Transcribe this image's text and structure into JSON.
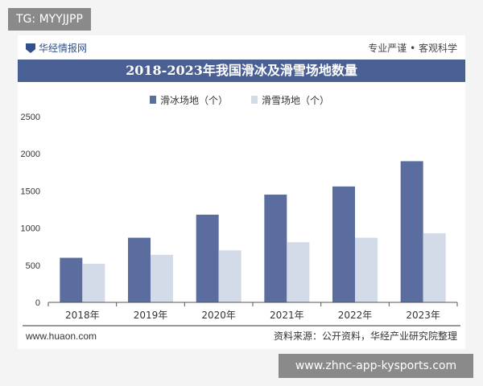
{
  "overlay": {
    "top_left_badge": "TG: MYYJJPP",
    "bottom_right_badge": "www.zhnc-app-kysports.com"
  },
  "header": {
    "brand": "华经情报网",
    "slogan": "专业严谨 • 客观科学"
  },
  "footer": {
    "website": "www.huaon.com",
    "source": "资料来源：公开资料，华经产业研究院整理"
  },
  "colors": {
    "title_bar": "#4a5f93",
    "series_1": "#5b6d9e",
    "series_2": "#d3dae8"
  },
  "chart_data": {
    "type": "bar",
    "title": "2018-2023年我国滑冰及滑雪场地数量",
    "categories": [
      "2018年",
      "2019年",
      "2020年",
      "2021年",
      "2022年",
      "2023年"
    ],
    "series": [
      {
        "name": "滑冰场地（个）",
        "values": [
          600,
          870,
          1180,
          1450,
          1560,
          1900
        ]
      },
      {
        "name": "滑雪场地（个）",
        "values": [
          520,
          640,
          700,
          810,
          870,
          930
        ]
      }
    ],
    "ylim": [
      0,
      2500
    ],
    "yticks": [
      "0",
      "500",
      "1000",
      "1500",
      "2000",
      "2500"
    ],
    "legend_position": "top-center",
    "grid": false
  }
}
